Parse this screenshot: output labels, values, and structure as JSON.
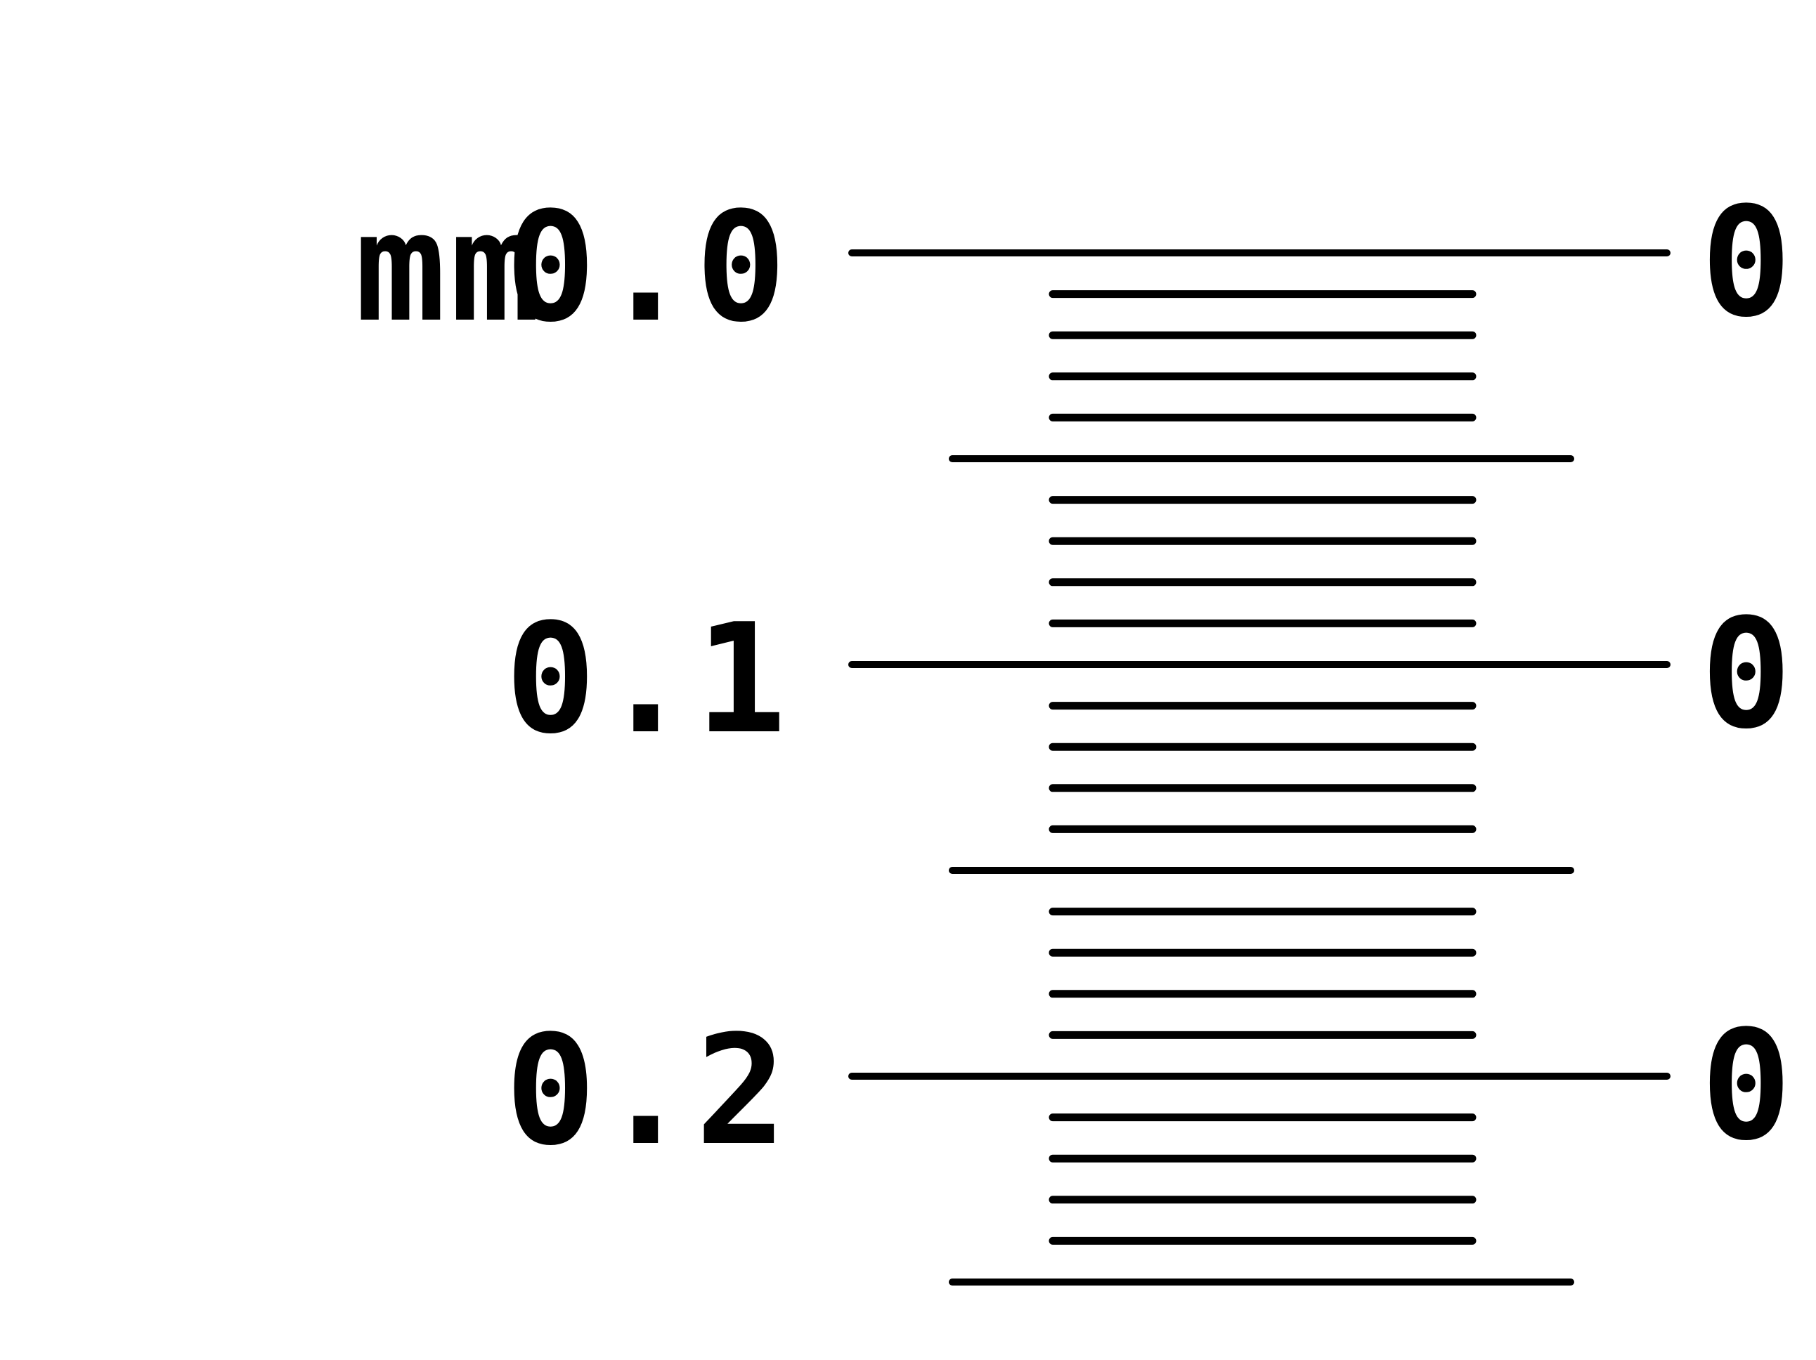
{
  "diagram": {
    "type": "stage-micrometer-scale",
    "unit_label": "mm",
    "left_labels": [
      "0.0",
      "0.1",
      "0.2"
    ],
    "right_labels": [
      "0.",
      "0.",
      "0."
    ],
    "major_interval_mm": 0.1,
    "divisions_per_major": 10,
    "visible_range_mm": [
      0.0,
      0.25
    ],
    "line_color": "#000000",
    "background_color": "#ffffff"
  }
}
